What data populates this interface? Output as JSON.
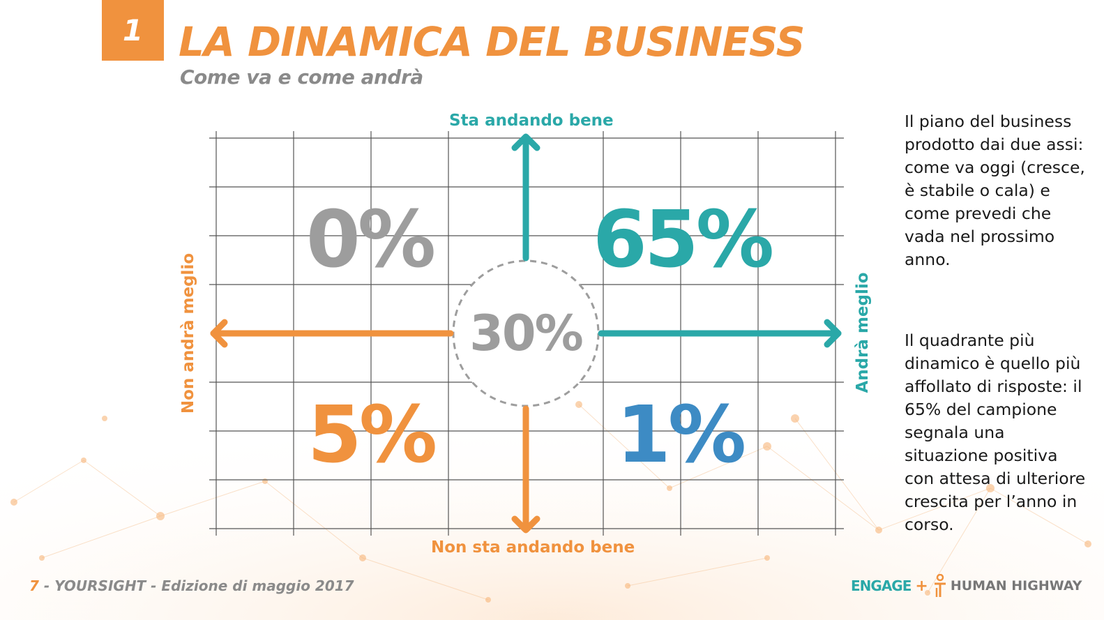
{
  "header": {
    "badge": "1",
    "title": "LA DINAMICA DEL BUSINESS",
    "subtitle": "Come va e come andrà"
  },
  "axes": {
    "top": "Sta andando bene",
    "bottom": "Non sta andando bene",
    "left": "Non andrà meglio",
    "right": "Andrà meglio"
  },
  "quadrants": {
    "top_left": "0%",
    "top_right": "65%",
    "bottom_left": "5%",
    "bottom_right": "1%",
    "center": "30%"
  },
  "sidebar": {
    "paragraph_1": "Il piano del business prodotto dai due assi: come va oggi (cresce, è stabile o cala) e come prevedi che vada nel prossimo anno.",
    "paragraph_2": "Il quadrante più dinamico è quello più affollato di risposte: il 65% del campione segnala una situazione positiva con attesa di ulteriore crescita per l’anno in corso."
  },
  "footer": {
    "page_number": "7",
    "text": " - YOURSIGHT - Edizione di maggio 2017"
  },
  "logos": {
    "engage": "ENGAGE",
    "plus": "+",
    "human_highway": "HUMAN HIGHWAY"
  },
  "colors": {
    "orange": "#f0923e",
    "teal": "#2aa8a8",
    "blue": "#3d8bc4",
    "gray": "#9d9d9d"
  }
}
